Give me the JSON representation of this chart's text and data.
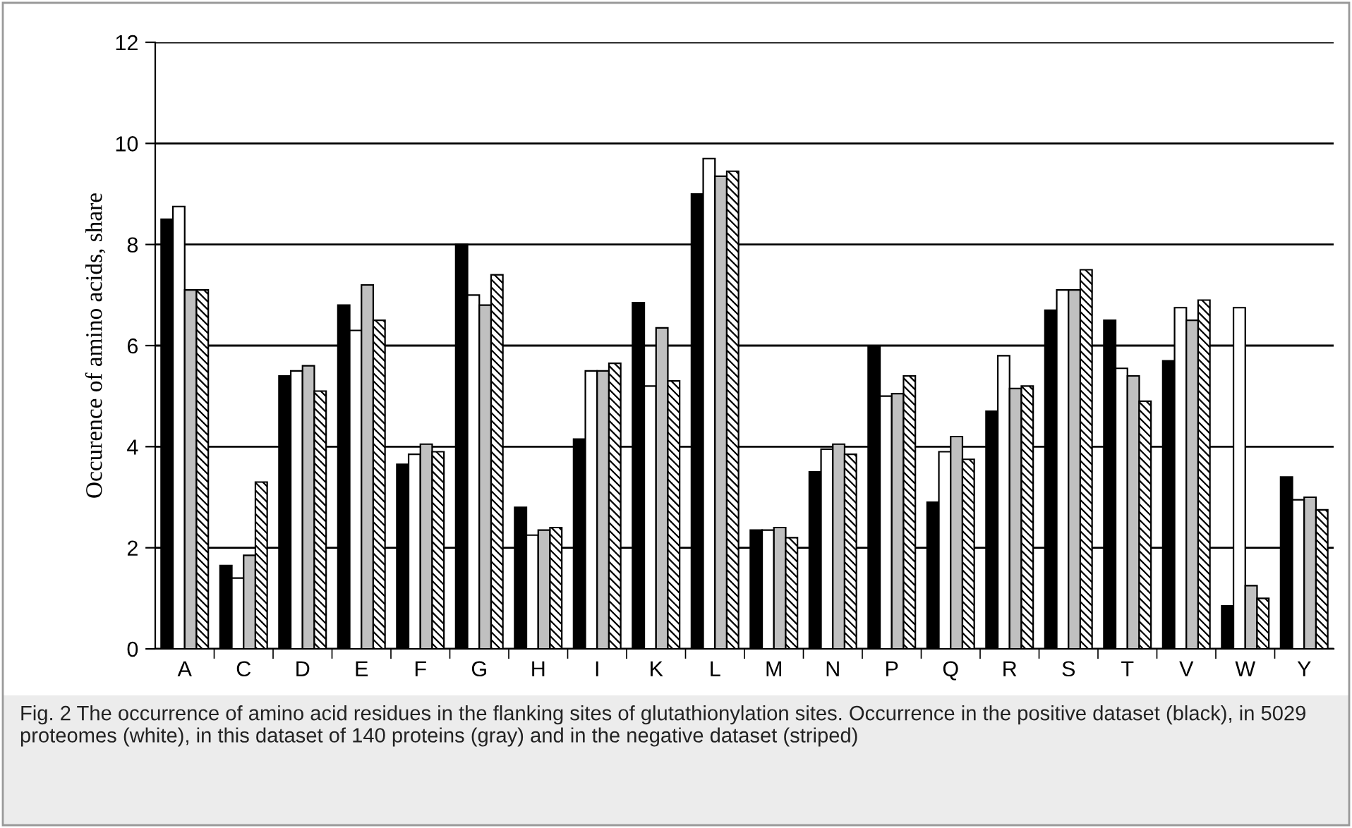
{
  "chart_data": {
    "type": "bar",
    "ylabel": "Occurence of amino acids, share",
    "categories": [
      "A",
      "C",
      "D",
      "E",
      "F",
      "G",
      "H",
      "I",
      "K",
      "L",
      "M",
      "N",
      "P",
      "Q",
      "R",
      "S",
      "T",
      "V",
      "W",
      "Y"
    ],
    "series": [
      {
        "color": "#000000",
        "values": [
          8.5,
          1.65,
          5.4,
          6.8,
          3.65,
          8.0,
          2.8,
          4.15,
          6.85,
          9.0,
          2.35,
          3.5,
          6.0,
          2.9,
          4.7,
          6.7,
          6.5,
          5.7,
          0.85,
          3.4
        ]
      },
      {
        "color": "#ffffff",
        "values": [
          8.75,
          1.4,
          5.5,
          6.3,
          3.85,
          7.0,
          2.25,
          5.5,
          5.2,
          9.7,
          2.35,
          3.95,
          5.0,
          3.9,
          5.8,
          7.1,
          5.55,
          6.75,
          6.75,
          2.95
        ]
      },
      {
        "color": "#c0c0c0",
        "values": [
          7.1,
          1.85,
          5.6,
          7.2,
          4.05,
          6.8,
          2.35,
          5.5,
          6.35,
          9.35,
          2.4,
          4.05,
          5.05,
          4.2,
          5.15,
          7.1,
          5.4,
          6.5,
          1.25,
          3.0
        ]
      },
      {
        "color": "#000000",
        "values": [
          7.1,
          3.3,
          5.1,
          6.5,
          3.9,
          7.4,
          2.4,
          5.65,
          5.3,
          9.45,
          2.2,
          3.85,
          5.4,
          3.75,
          5.2,
          7.5,
          4.9,
          6.9,
          1.0,
          2.75
        ]
      }
    ],
    "ylim": [
      0,
      12
    ],
    "yticks": [
      0,
      2,
      4,
      6,
      8,
      10,
      12
    ],
    "grid": "y",
    "legend": false,
    "annotations": [
      "Fig. 2 The occurrence of amino acid residues in the flanking sites of glutathionylation sites. Occurrence in the positive dataset (black), in 5029 proteomes (white), in this dataset of 140 proteins (gray) and in the negative dataset (striped)"
    ]
  }
}
